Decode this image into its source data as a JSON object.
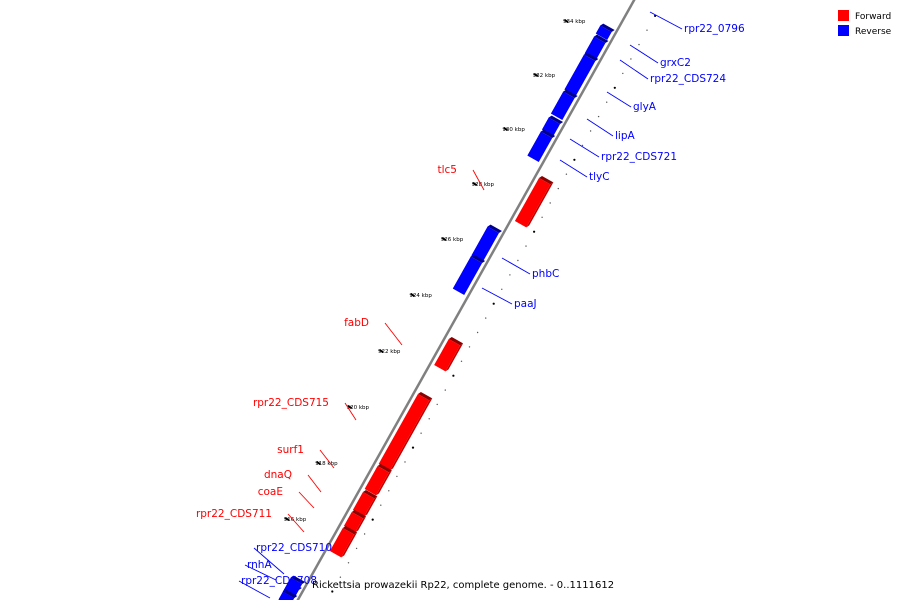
{
  "colors": {
    "forward": "#ff0000",
    "reverse": "#0000ff",
    "backbone": "#808080"
  },
  "legend": {
    "forward": "Forward",
    "reverse": "Reverse"
  },
  "caption": "Rickettsia prowazekii Rp22, complete genome. - 0..1111612",
  "ticks": [
    "916 kbp",
    "918 kbp",
    "920 kbp",
    "922 kbp",
    "924 kbp",
    "926 kbp",
    "928 kbp",
    "930 kbp",
    "932 kbp",
    "934 kbp"
  ],
  "genes": [
    {
      "name": "rpr22_0796",
      "strand": "reverse"
    },
    {
      "name": "grxC2",
      "strand": "reverse"
    },
    {
      "name": "rpr22_CDS724",
      "strand": "reverse"
    },
    {
      "name": "glyA",
      "strand": "reverse"
    },
    {
      "name": "lipA",
      "strand": "reverse"
    },
    {
      "name": "rpr22_CDS721",
      "strand": "reverse"
    },
    {
      "name": "tlyC",
      "strand": "reverse"
    },
    {
      "name": "tlc5",
      "strand": "forward"
    },
    {
      "name": "phbC",
      "strand": "reverse"
    },
    {
      "name": "paaJ",
      "strand": "reverse"
    },
    {
      "name": "fabD",
      "strand": "forward"
    },
    {
      "name": "rpr22_CDS715",
      "strand": "forward"
    },
    {
      "name": "surf1",
      "strand": "forward"
    },
    {
      "name": "dnaQ",
      "strand": "forward"
    },
    {
      "name": "coaE",
      "strand": "forward"
    },
    {
      "name": "rpr22_CDS711",
      "strand": "forward"
    },
    {
      "name": "rpr22_CDS710",
      "strand": "reverse"
    },
    {
      "name": "rnhA",
      "strand": "reverse"
    },
    {
      "name": "rpr22_CDS708",
      "strand": "reverse"
    }
  ]
}
